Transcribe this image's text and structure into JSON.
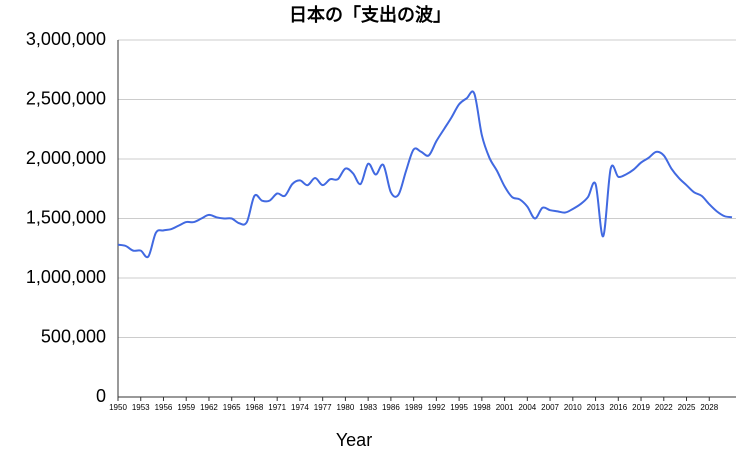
{
  "chart_data": {
    "type": "line",
    "title": "日本の「支出の波」",
    "x_label": "Year",
    "x": [
      1950,
      1951,
      1952,
      1953,
      1954,
      1955,
      1956,
      1957,
      1958,
      1959,
      1960,
      1961,
      1962,
      1963,
      1964,
      1965,
      1966,
      1967,
      1968,
      1969,
      1970,
      1971,
      1972,
      1973,
      1974,
      1975,
      1976,
      1977,
      1978,
      1979,
      1980,
      1981,
      1982,
      1983,
      1984,
      1985,
      1986,
      1987,
      1988,
      1989,
      1990,
      1991,
      1992,
      1993,
      1994,
      1995,
      1996,
      1997,
      1998,
      1999,
      2000,
      2001,
      2002,
      2003,
      2004,
      2005,
      2006,
      2007,
      2008,
      2009,
      2010,
      2011,
      2012,
      2013,
      2014,
      2015,
      2016,
      2017,
      2018,
      2019,
      2020,
      2021,
      2022,
      2023,
      2024,
      2025,
      2026,
      2027,
      2028,
      2029,
      2030,
      2031
    ],
    "series": [
      {
        "color": "#4169e1",
        "values": [
          1280000,
          1270000,
          1230000,
          1230000,
          1180000,
          1380000,
          1400000,
          1410000,
          1440000,
          1470000,
          1470000,
          1500000,
          1530000,
          1510000,
          1500000,
          1500000,
          1460000,
          1470000,
          1690000,
          1650000,
          1650000,
          1710000,
          1690000,
          1790000,
          1820000,
          1780000,
          1840000,
          1780000,
          1830000,
          1830000,
          1920000,
          1880000,
          1790000,
          1960000,
          1870000,
          1950000,
          1720000,
          1700000,
          1900000,
          2080000,
          2060000,
          2030000,
          2150000,
          2250000,
          2350000,
          2460000,
          2510000,
          2550000,
          2200000,
          2010000,
          1900000,
          1770000,
          1680000,
          1660000,
          1600000,
          1500000,
          1590000,
          1570000,
          1560000,
          1550000,
          1580000,
          1620000,
          1680000,
          1790000,
          1350000,
          1920000,
          1850000,
          1870000,
          1910000,
          1970000,
          2010000,
          2060000,
          2030000,
          1920000,
          1840000,
          1780000,
          1720000,
          1690000,
          1620000,
          1560000,
          1520000,
          1510000
        ]
      }
    ],
    "xlim": [
      1950,
      2031
    ],
    "xticks": [
      1950,
      1953,
      1956,
      1959,
      1962,
      1965,
      1968,
      1971,
      1974,
      1977,
      1980,
      1983,
      1986,
      1989,
      1992,
      1995,
      1998,
      2001,
      2004,
      2007,
      2010,
      2013,
      2016,
      2019,
      2022,
      2025,
      2028
    ],
    "ylim": [
      0,
      3000000
    ],
    "yticks": [
      0,
      {
        "value": 500000,
        "label": "500,000"
      },
      {
        "value": 1000000,
        "label": "1,000,000"
      },
      {
        "value": 1500000,
        "label": "1,500,000"
      },
      {
        "value": 2000000,
        "label": "2,000,000"
      },
      {
        "value": 2500000,
        "label": "2,500,000"
      },
      {
        "value": 3000000,
        "label": "3,000,000"
      }
    ],
    "grid": true
  }
}
